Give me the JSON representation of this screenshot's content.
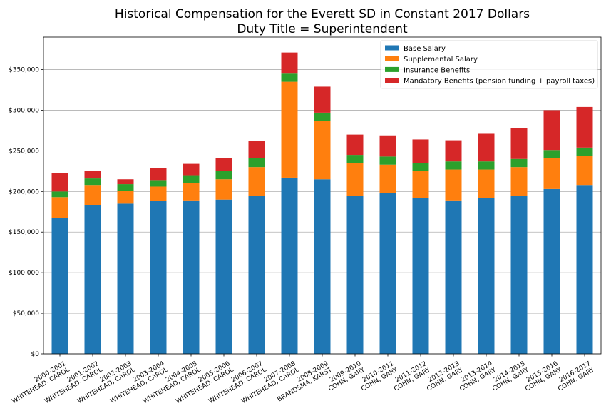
{
  "chart_data": {
    "type": "bar",
    "stacked": true,
    "title": "Historical Compensation for the Everett SD in Constant 2017 Dollars",
    "subtitle": "Duty Title = Superintendent",
    "xlabel": "",
    "ylabel": "",
    "ylim": [
      0,
      390000
    ],
    "yticks": [
      0,
      50000,
      100000,
      150000,
      200000,
      250000,
      300000,
      350000
    ],
    "ytick_labels": [
      "$0",
      "$50,000",
      "$100,000",
      "$150,000",
      "$200,000",
      "$250,000",
      "$300,000",
      "$350,000"
    ],
    "grid": "horizontal",
    "legend_position": "top-right",
    "categories": [
      [
        "2000-2001",
        "WHITEHEAD, CAROL"
      ],
      [
        "2001-2002",
        "WHITEHEAD, CAROL"
      ],
      [
        "2002-2003",
        "WHITEHEAD, CAROL"
      ],
      [
        "2003-2004",
        "WHITEHEAD, CAROL"
      ],
      [
        "2004-2005",
        "WHITEHEAD, CAROL"
      ],
      [
        "2005-2006",
        "WHITEHEAD, CAROL"
      ],
      [
        "2006-2007",
        "WHITEHEAD, CAROL"
      ],
      [
        "2007-2008",
        "WHITEHEAD, CAROL"
      ],
      [
        "2008-2009",
        "BRANDSMA, KARST"
      ],
      [
        "2009-2010",
        "COHN, GARY"
      ],
      [
        "2010-2011",
        "COHN, GARY"
      ],
      [
        "2011-2012",
        "COHN, GARY"
      ],
      [
        "2012-2013",
        "COHN, GARY"
      ],
      [
        "2013-2014",
        "COHN, GARY"
      ],
      [
        "2014-2015",
        "COHN, GARY"
      ],
      [
        "2015-2016",
        "COHN, GARY"
      ],
      [
        "2016-2017",
        "COHN, GARY"
      ]
    ],
    "series": [
      {
        "name": "Base Salary",
        "color": "#1f77b4",
        "values": [
          167000,
          183000,
          185000,
          188000,
          189000,
          190000,
          195000,
          217000,
          215000,
          195000,
          198000,
          192000,
          189000,
          192000,
          195000,
          203000,
          208000
        ]
      },
      {
        "name": "Supplemental Salary",
        "color": "#ff7f0e",
        "values": [
          26000,
          25000,
          16000,
          18000,
          21000,
          25000,
          35000,
          118000,
          72000,
          40000,
          35000,
          33000,
          38000,
          35000,
          35000,
          38000,
          36000
        ]
      },
      {
        "name": "Insurance Benefits",
        "color": "#2ca02c",
        "values": [
          7000,
          8000,
          8000,
          8000,
          10000,
          10000,
          11000,
          10000,
          10000,
          10000,
          10000,
          10000,
          10000,
          10000,
          10000,
          10000,
          10000
        ]
      },
      {
        "name": "Mandatory Benefits (pension funding + payroll taxes)",
        "color": "#d62728",
        "values": [
          23000,
          9000,
          6000,
          15000,
          14000,
          16000,
          21000,
          26000,
          32000,
          25000,
          26000,
          29000,
          26000,
          34000,
          38000,
          49000,
          50000
        ]
      }
    ]
  }
}
